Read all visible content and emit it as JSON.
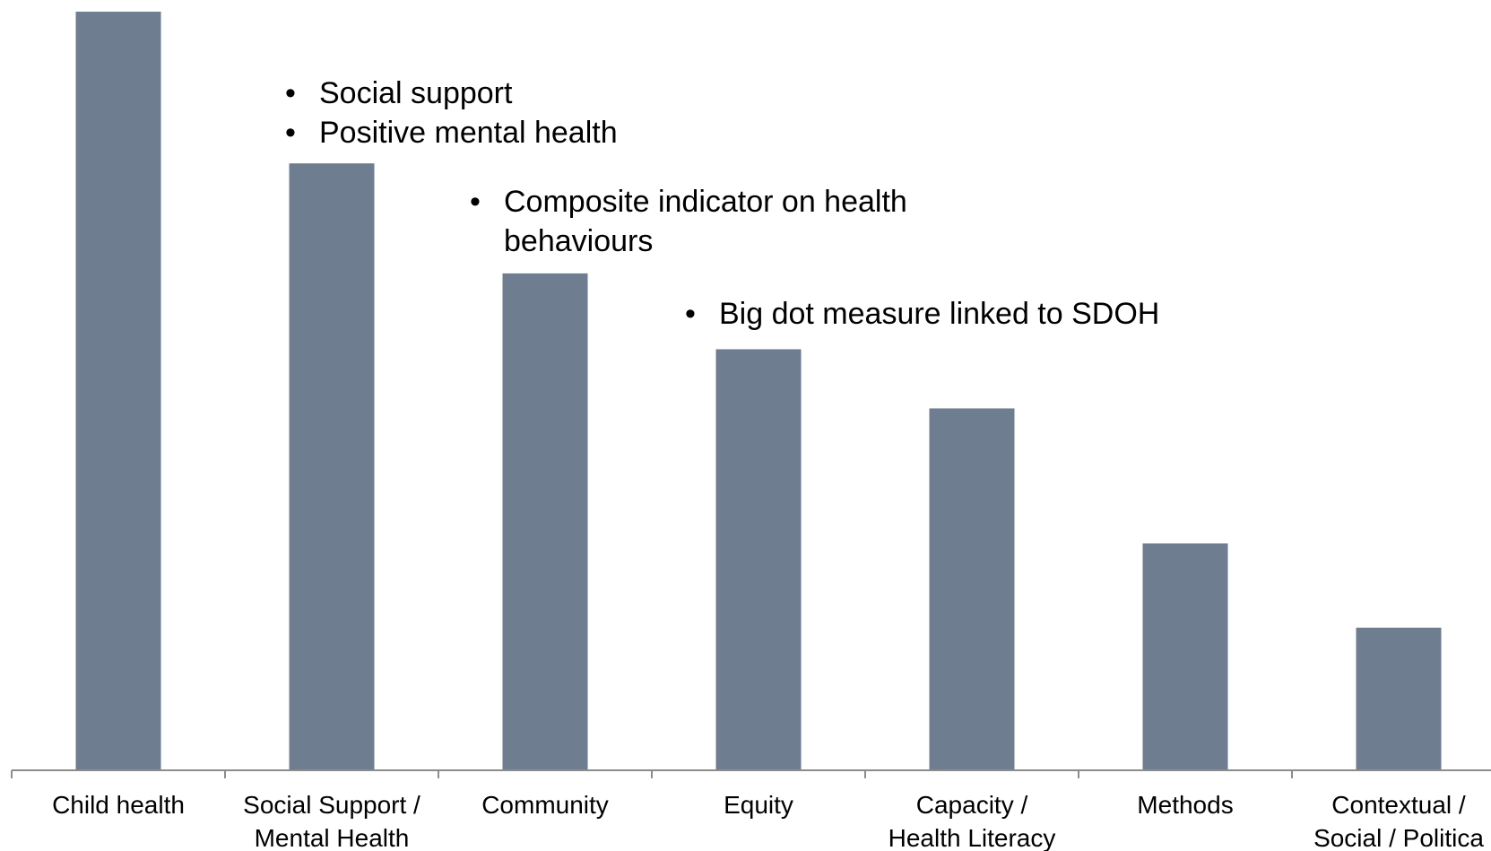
{
  "chart_data": {
    "type": "bar",
    "categories": [
      [
        "Child health"
      ],
      [
        "Social Support /",
        "Mental Health"
      ],
      [
        "Community"
      ],
      [
        "Equity"
      ],
      [
        "Capacity /",
        "Health Literacy"
      ],
      [
        "Methods"
      ],
      [
        "Contextual /",
        "Social / Politica"
      ]
    ],
    "values": [
      100,
      80,
      65.5,
      55.5,
      47.7,
      29.9,
      18.8
    ],
    "ylim": [
      0,
      100
    ],
    "grid": false,
    "bar_color": "#6e7d8f",
    "axis_color": "#8c8c8c"
  },
  "annotations": [
    {
      "items": [
        "Social support",
        "Positive mental health"
      ]
    },
    {
      "items": [
        "Composite indicator on health",
        "behaviours"
      ],
      "continuation": [
        false,
        true
      ]
    },
    {
      "items": [
        "Big dot measure linked to SDOH"
      ]
    }
  ],
  "bullet_char": "•"
}
